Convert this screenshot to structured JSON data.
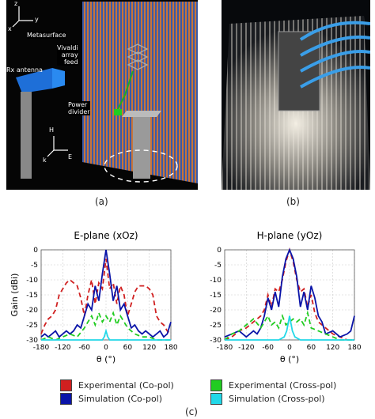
{
  "figure_a": {
    "caption": "(a)",
    "labels": {
      "metasurface": "Metasurface",
      "vivaldi": "Vivaldi\narray\nfeed",
      "rx": "Rx antenna",
      "divider": "Power\ndivider",
      "axis_x": "x",
      "axis_y": "y",
      "axis_z": "z",
      "h_vec": "H",
      "k_vec": "k",
      "e_vec": "E"
    }
  },
  "figure_b": {
    "caption": "(b)"
  },
  "figure_c": {
    "caption": "(c)"
  },
  "colors": {
    "exp_co": "#d02020",
    "sim_co": "#0a14a8",
    "exp_cross": "#22cc22",
    "sim_cross": "#22d8e8"
  },
  "legend": [
    {
      "label": "Experimental (Co-pol)",
      "color": "#d02020"
    },
    {
      "label": "Experimental (Cross-pol)",
      "color": "#22cc22"
    },
    {
      "label": "Simulation (Co-pol)",
      "color": "#0a14a8"
    },
    {
      "label": "Simulation (Cross-pol)",
      "color": "#22d8e8"
    }
  ],
  "chart_data": [
    {
      "type": "line",
      "title": "E-plane (xOz)",
      "xlabel": "θ (°)",
      "ylabel": "Gain (dBi)",
      "xlim": [
        -180,
        180
      ],
      "ylim": [
        -30,
        0
      ],
      "xticks": [
        -180,
        -120,
        -60,
        0,
        60,
        120,
        180
      ],
      "yticks": [
        0,
        -5,
        -10,
        -15,
        -20,
        -25,
        -30
      ],
      "grid": true,
      "series": [
        {
          "name": "Experimental (Co-pol)",
          "x": [
            -180,
            -170,
            -160,
            -150,
            -140,
            -130,
            -120,
            -110,
            -100,
            -90,
            -80,
            -70,
            -60,
            -50,
            -40,
            -30,
            -20,
            -10,
            0,
            10,
            20,
            30,
            40,
            50,
            60,
            70,
            80,
            90,
            100,
            110,
            120,
            130,
            140,
            150,
            160,
            170,
            180
          ],
          "y": [
            -28,
            -25,
            -23,
            -22,
            -20,
            -15,
            -13,
            -11,
            -10,
            -11,
            -12,
            -16,
            -22,
            -15,
            -10,
            -18,
            -11,
            -13,
            -3,
            -13,
            -11,
            -18,
            -12,
            -15,
            -22,
            -18,
            -14,
            -12,
            -12,
            -12,
            -13,
            -15,
            -22,
            -24,
            -25,
            -27,
            -28
          ]
        },
        {
          "name": "Simulation (Co-pol)",
          "x": [
            -180,
            -170,
            -160,
            -150,
            -140,
            -130,
            -120,
            -110,
            -100,
            -90,
            -80,
            -70,
            -60,
            -50,
            -40,
            -30,
            -20,
            -10,
            0,
            10,
            20,
            30,
            40,
            50,
            60,
            70,
            80,
            90,
            100,
            110,
            120,
            130,
            140,
            150,
            160,
            170,
            180
          ],
          "y": [
            -29,
            -28,
            -29,
            -28,
            -27,
            -29,
            -28,
            -27,
            -28,
            -27,
            -25,
            -26,
            -22,
            -18,
            -20,
            -12,
            -17,
            -8,
            0,
            -8,
            -17,
            -12,
            -20,
            -18,
            -22,
            -26,
            -25,
            -27,
            -28,
            -27,
            -28,
            -29,
            -28,
            -27,
            -29,
            -28,
            -24
          ]
        },
        {
          "name": "Experimental (Cross-pol)",
          "x": [
            -180,
            -160,
            -140,
            -120,
            -100,
            -80,
            -60,
            -50,
            -40,
            -30,
            -20,
            -10,
            0,
            10,
            20,
            30,
            40,
            50,
            60,
            80,
            100,
            120,
            140,
            160,
            180
          ],
          "y": [
            -30,
            -29,
            -30,
            -29,
            -28,
            -29,
            -26,
            -24,
            -22,
            -25,
            -21,
            -24,
            -22,
            -24,
            -21,
            -25,
            -22,
            -24,
            -26,
            -28,
            -29,
            -29,
            -30,
            -30,
            -30
          ]
        },
        {
          "name": "Simulation (Cross-pol)",
          "x": [
            -180,
            -60,
            -30,
            -10,
            -5,
            0,
            5,
            10,
            30,
            60,
            180
          ],
          "y": [
            -30,
            -30,
            -30,
            -30,
            -29,
            -27,
            -29,
            -30,
            -30,
            -30,
            -30
          ]
        }
      ]
    },
    {
      "type": "line",
      "title": "H-plane (yOz)",
      "xlabel": "θ (°)",
      "ylabel": "",
      "xlim": [
        -180,
        180
      ],
      "ylim": [
        -30,
        0
      ],
      "xticks": [
        -180,
        -120,
        -60,
        0,
        60,
        120,
        180
      ],
      "yticks": [
        0,
        -5,
        -10,
        -15,
        -20,
        -25,
        -30
      ],
      "grid": true,
      "series": [
        {
          "name": "Experimental (Co-pol)",
          "x": [
            -180,
            -160,
            -140,
            -120,
            -100,
            -80,
            -70,
            -60,
            -50,
            -40,
            -30,
            -20,
            -10,
            0,
            10,
            20,
            30,
            40,
            50,
            60,
            70,
            80,
            100,
            120,
            140,
            160,
            180
          ],
          "y": [
            -30,
            -29,
            -27,
            -26,
            -24,
            -22,
            -20,
            -15,
            -19,
            -13,
            -14,
            -10,
            -4,
            0,
            -4,
            -10,
            -14,
            -13,
            -19,
            -15,
            -21,
            -24,
            -26,
            -28,
            -29,
            -30,
            -30
          ]
        },
        {
          "name": "Simulation (Co-pol)",
          "x": [
            -180,
            -160,
            -140,
            -120,
            -100,
            -90,
            -80,
            -70,
            -60,
            -50,
            -40,
            -30,
            -20,
            -10,
            0,
            10,
            20,
            30,
            40,
            50,
            60,
            70,
            80,
            90,
            100,
            120,
            140,
            160,
            170,
            180
          ],
          "y": [
            -29,
            -28,
            -27,
            -29,
            -27,
            -28,
            -26,
            -22,
            -16,
            -20,
            -14,
            -19,
            -9,
            -3,
            0,
            -3,
            -9,
            -19,
            -14,
            -20,
            -12,
            -16,
            -22,
            -24,
            -28,
            -27,
            -29,
            -28,
            -27,
            -22
          ]
        },
        {
          "name": "Experimental (Cross-pol)",
          "x": [
            -180,
            -160,
            -140,
            -120,
            -100,
            -80,
            -60,
            -50,
            -40,
            -30,
            -20,
            -10,
            0,
            10,
            20,
            30,
            40,
            50,
            60,
            80,
            100,
            120,
            140,
            160,
            180
          ],
          "y": [
            -30,
            -28,
            -27,
            -25,
            -23,
            -26,
            -22,
            -25,
            -24,
            -26,
            -22,
            -25,
            -24,
            -23,
            -24,
            -23,
            -25,
            -21,
            -26,
            -27,
            -28,
            -29,
            -30,
            -30,
            -30
          ]
        },
        {
          "name": "Simulation (Cross-pol)",
          "x": [
            -180,
            -30,
            -15,
            -8,
            -3,
            0,
            3,
            8,
            15,
            30,
            180
          ],
          "y": [
            -30,
            -30,
            -29,
            -27,
            -24,
            -22,
            -24,
            -27,
            -29,
            -30,
            -30
          ]
        }
      ]
    }
  ]
}
